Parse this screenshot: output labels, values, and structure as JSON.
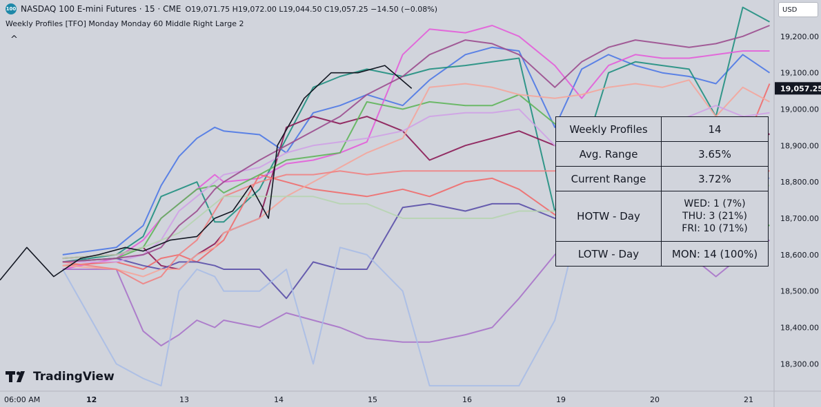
{
  "header": {
    "badge": "100",
    "title": "NASDAQ 100 E-mini Futures · 15 · CME",
    "ohlc": "O19,071.75 H19,072.00 L19,044.50 C19,057.25 −14.50 (−0.08%)",
    "indicator": "Weekly Profiles [TFO] Monday Monday 60 Middle Right Large 2",
    "collapse_glyph": "^"
  },
  "currency": "USD",
  "brand": "TradingView",
  "stats_table": {
    "rows": [
      {
        "label": "Weekly Profiles",
        "value": "14"
      },
      {
        "label": "Avg. Range",
        "value": "3.65%"
      },
      {
        "label": "Current Range",
        "value": "3.72%"
      },
      {
        "label": "HOTW - Day",
        "lines": [
          "WED: 1 (7%)",
          "THU: 3 (21%)",
          "FRI: 10 (71%)"
        ]
      },
      {
        "label": "LOTW - Day",
        "value": "MON: 14 (100%)"
      }
    ]
  },
  "chart_data": {
    "type": "line",
    "title": "NASDAQ 100 E-mini Futures · 15 · CME",
    "xlabel": "",
    "ylabel": "",
    "x_ticks": [
      "06:00 AM",
      "12",
      "13",
      "14",
      "15",
      "16",
      "19",
      "20",
      "21"
    ],
    "y_ticks": [
      18300,
      18400,
      18500,
      18600,
      18700,
      18800,
      18900,
      19000,
      19100,
      19200
    ],
    "y_tick_labels": [
      "18,300.00",
      "18,400.00",
      "18,500.00",
      "18,600.00",
      "18,700.00",
      "18,800.00",
      "18,900.00",
      "19,000.00",
      "19,100.00",
      "19,200.00"
    ],
    "ylim": [
      18225,
      19300
    ],
    "xlim": [
      0,
      8.65
    ],
    "last_price": 19057.25,
    "last_price_label": "19,057.25",
    "price_bars": {
      "x": [
        0.0,
        0.3,
        0.6,
        0.9,
        1.1,
        1.4,
        1.6,
        1.9,
        2.2,
        2.4,
        2.6,
        2.8,
        3.0,
        3.1,
        3.4,
        3.7,
        4.0,
        4.3,
        4.6
      ],
      "close": [
        18530,
        18620,
        18540,
        18590,
        18600,
        18620,
        18610,
        18640,
        18650,
        18700,
        18720,
        18790,
        18700,
        18900,
        19030,
        19100,
        19100,
        19120,
        19057
      ]
    },
    "series": [
      {
        "color": "#4c78e6",
        "x": [
          0.7,
          1.3,
          1.6,
          1.8,
          2.0,
          2.2,
          2.4,
          2.5,
          2.9,
          3.2,
          3.5,
          3.8,
          4.1,
          4.5,
          4.8,
          5.2,
          5.5,
          5.8,
          6.2,
          6.5,
          6.8,
          7.1,
          7.4,
          7.7,
          8.0,
          8.3,
          8.6
        ],
        "y": [
          18600,
          18620,
          18680,
          18790,
          18870,
          18920,
          18950,
          18940,
          18930,
          18880,
          18990,
          19010,
          19040,
          19010,
          19080,
          19150,
          19170,
          19160,
          18950,
          19110,
          19150,
          19120,
          19100,
          19090,
          19070,
          19150,
          19100
        ]
      },
      {
        "color": "#1f8f80",
        "x": [
          0.7,
          1.3,
          1.6,
          1.8,
          2.0,
          2.2,
          2.4,
          2.5,
          2.9,
          3.2,
          3.5,
          3.8,
          4.1,
          4.5,
          4.8,
          5.2,
          5.5,
          5.8,
          6.2,
          6.5,
          6.8,
          7.1,
          7.4,
          7.7,
          8.0,
          8.3,
          8.6
        ],
        "y": [
          18580,
          18600,
          18650,
          18760,
          18780,
          18800,
          18690,
          18690,
          18780,
          18920,
          19060,
          19090,
          19110,
          19090,
          19110,
          19120,
          19130,
          19140,
          18720,
          18860,
          19100,
          19130,
          19120,
          19110,
          18980,
          19280,
          19240
        ]
      },
      {
        "color": "#e35dd9",
        "x": [
          0.7,
          1.3,
          1.6,
          1.8,
          2.0,
          2.2,
          2.4,
          2.5,
          2.9,
          3.2,
          3.5,
          3.8,
          4.1,
          4.5,
          4.8,
          5.2,
          5.5,
          5.8,
          6.2,
          6.5,
          6.8,
          7.1,
          7.4,
          7.7,
          8.0,
          8.3,
          8.6
        ],
        "y": [
          18560,
          18590,
          18640,
          18700,
          18740,
          18780,
          18820,
          18800,
          18810,
          18850,
          18860,
          18880,
          18910,
          19150,
          19220,
          19210,
          19230,
          19200,
          19120,
          19030,
          19120,
          19150,
          19140,
          19140,
          19150,
          19160,
          19160
        ]
      },
      {
        "color": "#8b1a55",
        "x": [
          0.7,
          1.3,
          1.6,
          1.8,
          2.0,
          2.2,
          2.4,
          2.5,
          2.9,
          3.2,
          3.5,
          3.8,
          4.1,
          4.5,
          4.8,
          5.2,
          5.5,
          5.8,
          6.2,
          6.5,
          6.8,
          7.1,
          7.4,
          7.7,
          8.0,
          8.3,
          8.6
        ],
        "y": [
          18590,
          18600,
          18620,
          18570,
          18560,
          18600,
          18630,
          18660,
          18700,
          18950,
          18980,
          18960,
          18980,
          18940,
          18860,
          18900,
          18920,
          18940,
          18900,
          18920,
          18930,
          18950,
          18930,
          18960,
          18870,
          18980,
          18930
        ]
      },
      {
        "color": "#ef6b6b",
        "x": [
          0.7,
          1.3,
          1.6,
          1.8,
          2.0,
          2.2,
          2.4,
          2.5,
          2.9,
          3.2,
          3.5,
          3.8,
          4.1,
          4.5,
          4.8,
          5.2,
          5.5,
          5.8,
          6.2,
          6.5,
          6.8,
          7.1,
          7.4,
          7.7,
          8.0,
          8.3,
          8.6
        ],
        "y": [
          18570,
          18580,
          18560,
          18590,
          18600,
          18580,
          18620,
          18640,
          18820,
          18800,
          18780,
          18770,
          18760,
          18780,
          18760,
          18800,
          18810,
          18780,
          18710,
          18670,
          18650,
          18660,
          18700,
          18640,
          18720,
          18890,
          19070
        ]
      },
      {
        "color": "#5a4fa8",
        "x": [
          0.7,
          1.3,
          1.6,
          1.8,
          2.0,
          2.2,
          2.4,
          2.5,
          2.9,
          3.2,
          3.5,
          3.8,
          4.1,
          4.5,
          4.8,
          5.2,
          5.5,
          5.8,
          6.2,
          6.5,
          6.8,
          7.1,
          7.4,
          7.7,
          8.0,
          8.3,
          8.6
        ],
        "y": [
          18580,
          18590,
          18570,
          18560,
          18580,
          18580,
          18570,
          18560,
          18560,
          18480,
          18580,
          18560,
          18560,
          18730,
          18740,
          18720,
          18740,
          18740,
          18700,
          18730,
          18740,
          18760,
          18780,
          18790,
          18790,
          18810,
          18810
        ]
      },
      {
        "color": "#a873c9",
        "x": [
          0.7,
          1.3,
          1.6,
          1.8,
          2.0,
          2.2,
          2.4,
          2.5,
          2.9,
          3.2,
          3.5,
          3.8,
          4.1,
          4.5,
          4.8,
          5.2,
          5.5,
          5.8,
          6.2,
          6.5,
          6.8,
          7.1,
          7.4,
          7.7,
          8.0,
          8.3,
          8.6
        ],
        "y": [
          18560,
          18560,
          18390,
          18350,
          18380,
          18420,
          18400,
          18420,
          18400,
          18440,
          18420,
          18400,
          18370,
          18360,
          18360,
          18380,
          18400,
          18480,
          18600,
          18660,
          18660,
          18640,
          18620,
          18600,
          18540,
          18600,
          18640
        ]
      },
      {
        "color": "#5fb55a",
        "x": [
          0.7,
          1.3,
          1.6,
          1.8,
          2.0,
          2.2,
          2.4,
          2.5,
          2.9,
          3.2,
          3.5,
          3.8,
          4.1,
          4.5,
          4.8,
          5.2,
          5.5,
          5.8,
          6.2,
          6.5,
          6.8,
          7.1,
          7.4,
          7.7,
          8.0,
          8.3,
          8.6
        ],
        "y": [
          18580,
          18590,
          18620,
          18700,
          18740,
          18780,
          18790,
          18770,
          18820,
          18860,
          18870,
          18880,
          19020,
          19000,
          19020,
          19010,
          19010,
          19040,
          18960,
          18900,
          18930,
          18900,
          18900,
          18880,
          18840,
          18700,
          18680
        ]
      },
      {
        "color": "#f4a59b",
        "x": [
          0.7,
          1.3,
          1.6,
          1.8,
          2.0,
          2.2,
          2.4,
          2.5,
          2.9,
          3.2,
          3.5,
          3.8,
          4.1,
          4.5,
          4.8,
          5.2,
          5.5,
          5.8,
          6.2,
          6.5,
          6.8,
          7.1,
          7.4,
          7.7,
          8.0,
          8.3,
          8.6
        ],
        "y": [
          18570,
          18560,
          18540,
          18560,
          18560,
          18600,
          18620,
          18660,
          18700,
          18760,
          18800,
          18840,
          18880,
          18920,
          19060,
          19070,
          19060,
          19040,
          19030,
          19040,
          19060,
          19070,
          19060,
          19080,
          18980,
          19060,
          19020
        ]
      },
      {
        "color": "#cfa1e6",
        "x": [
          0.7,
          1.3,
          1.6,
          1.8,
          2.0,
          2.2,
          2.4,
          2.5,
          2.9,
          3.2,
          3.5,
          3.8,
          4.1,
          4.5,
          4.8,
          5.2,
          5.5,
          5.8,
          6.2,
          6.5,
          6.8,
          7.1,
          7.4,
          7.7,
          8.0,
          8.3,
          8.6
        ],
        "y": [
          18580,
          18580,
          18600,
          18640,
          18720,
          18760,
          18800,
          18820,
          18840,
          18880,
          18900,
          18910,
          18920,
          18940,
          18980,
          18990,
          18990,
          19000,
          18900,
          18920,
          18950,
          18960,
          18960,
          18980,
          19010,
          18980,
          18990
        ]
      },
      {
        "color": "#a9bce6",
        "x": [
          0.7,
          1.3,
          1.6,
          1.8,
          2.0,
          2.2,
          2.4,
          2.5,
          2.9,
          3.2,
          3.5,
          3.8,
          4.1,
          4.5,
          4.8,
          5.2,
          5.5,
          5.8,
          6.2,
          6.5,
          6.8,
          7.1,
          7.4,
          7.7,
          8.0,
          8.3,
          8.6
        ],
        "y": [
          18560,
          18300,
          18260,
          18240,
          18500,
          18560,
          18540,
          18500,
          18500,
          18560,
          18300,
          18620,
          18600,
          18500,
          18240,
          18240,
          18240,
          18240,
          18420,
          18720,
          18800,
          18780,
          18680,
          18700,
          18720,
          18790,
          18810
        ]
      },
      {
        "color": "#f08282",
        "x": [
          0.7,
          1.3,
          1.6,
          1.8,
          2.0,
          2.2,
          2.4,
          2.5,
          2.9,
          3.2,
          3.5,
          3.8,
          4.1,
          4.5,
          4.8,
          5.2,
          5.5,
          5.8,
          6.2,
          6.5,
          6.8,
          7.1,
          7.4,
          7.7,
          8.0,
          8.3,
          8.6
        ],
        "y": [
          18580,
          18560,
          18520,
          18540,
          18600,
          18640,
          18720,
          18760,
          18800,
          18820,
          18820,
          18830,
          18820,
          18830,
          18830,
          18830,
          18830,
          18830,
          18830,
          18830,
          18830,
          18830,
          18830,
          18830,
          18830,
          18830,
          18830
        ]
      },
      {
        "color": "#b6d4b0",
        "x": [
          0.7,
          1.3,
          1.6,
          1.8,
          2.0,
          2.2,
          2.4,
          2.5,
          2.9,
          3.2,
          3.5,
          3.8,
          4.1,
          4.5,
          4.8,
          5.2,
          5.5,
          5.8,
          6.2,
          6.5,
          6.8,
          7.1,
          7.4,
          7.7,
          8.0,
          8.3,
          8.6
        ],
        "y": [
          18590,
          18600,
          18620,
          18640,
          18660,
          18700,
          18740,
          18760,
          18760,
          18760,
          18760,
          18740,
          18740,
          18700,
          18700,
          18700,
          18700,
          18720,
          18720,
          18720,
          18730,
          18740,
          18760,
          18770,
          18780,
          18790,
          18790
        ]
      },
      {
        "color": "#9b4c8e",
        "x": [
          0.7,
          1.3,
          1.6,
          1.8,
          2.0,
          2.2,
          2.4,
          2.5,
          2.9,
          3.2,
          3.5,
          3.8,
          4.1,
          4.5,
          4.8,
          5.2,
          5.5,
          5.8,
          6.2,
          6.5,
          6.8,
          7.1,
          7.4,
          7.7,
          8.0,
          8.3,
          8.6
        ],
        "y": [
          18580,
          18590,
          18600,
          18620,
          18680,
          18720,
          18780,
          18800,
          18860,
          18900,
          18940,
          18980,
          19040,
          19090,
          19150,
          19190,
          19180,
          19150,
          19060,
          19130,
          19170,
          19190,
          19180,
          19170,
          19180,
          19200,
          19230
        ]
      }
    ]
  }
}
